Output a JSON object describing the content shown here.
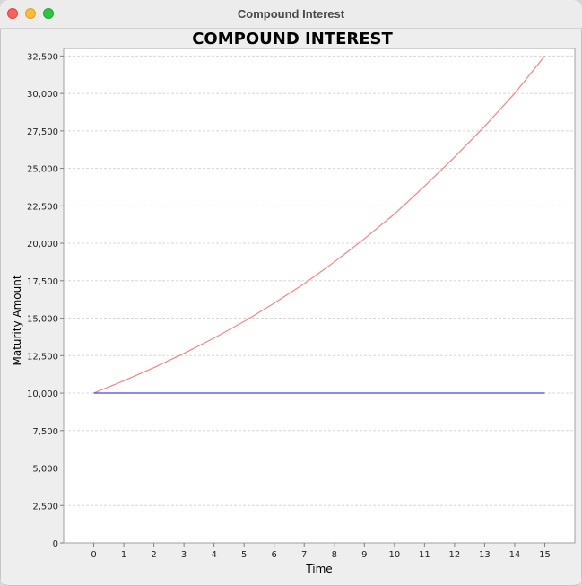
{
  "window": {
    "title": "Compound Interest"
  },
  "chart_data": {
    "type": "line",
    "title": "COMPOUND INTEREST",
    "xlabel": "Time",
    "ylabel": "Maturity Amount",
    "x": [
      0,
      1,
      2,
      3,
      4,
      5,
      6,
      7,
      8,
      9,
      10,
      11,
      12,
      13,
      14,
      15
    ],
    "xticks": [
      "0",
      "1",
      "2",
      "3",
      "4",
      "5",
      "6",
      "7",
      "8",
      "9",
      "10",
      "11",
      "12",
      "13",
      "14",
      "15"
    ],
    "yticks": [
      0,
      2500,
      5000,
      7500,
      10000,
      12500,
      15000,
      17500,
      20000,
      22500,
      25000,
      27500,
      30000,
      32500
    ],
    "yticklabels": [
      "0",
      "2,500",
      "5,000",
      "7,500",
      "10,000",
      "12,500",
      "15,000",
      "17,500",
      "20,000",
      "22,500",
      "25,000",
      "27,500",
      "30,000",
      "32,500"
    ],
    "ylim": [
      0,
      33000
    ],
    "xlim": [
      -1,
      16
    ],
    "grid": true,
    "series": [
      {
        "color": "#ff8080",
        "values": [
          10000,
          10820,
          11700,
          12650,
          13670,
          14780,
          16000,
          17300,
          18750,
          20300,
          21950,
          23800,
          25750,
          27800,
          30000,
          32500
        ]
      },
      {
        "color": "#4040ff",
        "values": [
          10000,
          10000,
          10000,
          10000,
          10000,
          10000,
          10000,
          10000,
          10000,
          10000,
          10000,
          10000,
          10000,
          10000,
          10000,
          10000
        ]
      }
    ]
  }
}
